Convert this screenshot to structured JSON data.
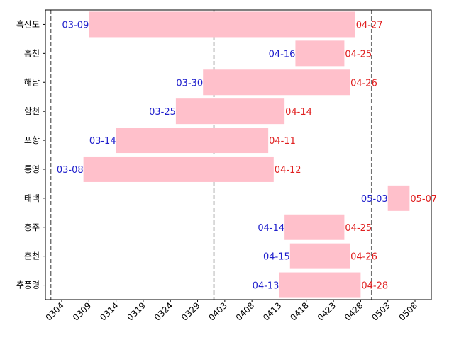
{
  "chart_data": {
    "type": "bar",
    "orientation": "horizontal",
    "title": "",
    "xlabel": "",
    "ylabel": "",
    "grid": false,
    "year": 2021,
    "bar_color": "#ffc0cb",
    "start_label_color": "#1f1fcc",
    "end_label_color": "#e02020",
    "ref_line_color": "#707070",
    "categories": [
      "흑산도",
      "홍천",
      "해남",
      "함천",
      "포항",
      "통영",
      "태백",
      "충주",
      "춘천",
      "추풍령"
    ],
    "series": [
      {
        "start": [
          "2021-03-09",
          "2021-04-16",
          "2021-03-30",
          "2021-03-25",
          "2021-03-14",
          "2021-03-08",
          "2021-05-03",
          "2021-04-14",
          "2021-04-15",
          "2021-04-13"
        ],
        "end": [
          "2021-04-27",
          "2021-04-25",
          "2021-04-26",
          "2021-04-14",
          "2021-04-11",
          "2021-04-12",
          "2021-05-07",
          "2021-04-25",
          "2021-04-26",
          "2021-04-28"
        ],
        "start_labels": [
          "03-09",
          "04-16",
          "03-30",
          "03-25",
          "03-14",
          "03-08",
          "05-03",
          "04-14",
          "04-15",
          "04-13"
        ],
        "end_labels": [
          "04-27",
          "04-25",
          "04-26",
          "04-14",
          "04-11",
          "04-12",
          "05-07",
          "04-25",
          "04-26",
          "04-28"
        ]
      }
    ],
    "x_ticks": [
      "2021-03-04",
      "2021-03-09",
      "2021-03-14",
      "2021-03-19",
      "2021-03-24",
      "2021-03-29",
      "2021-04-03",
      "2021-04-08",
      "2021-04-13",
      "2021-04-18",
      "2021-04-23",
      "2021-04-28",
      "2021-05-03",
      "2021-05-08"
    ],
    "x_tick_labels": [
      "0304",
      "0309",
      "0314",
      "0319",
      "0324",
      "0329",
      "0403",
      "0408",
      "0413",
      "0418",
      "0423",
      "0428",
      "0503",
      "0508"
    ],
    "xlim": [
      "2021-03-01",
      "2021-05-11"
    ],
    "reference_lines": [
      "2021-03-02",
      "2021-04-01",
      "2021-04-30"
    ]
  }
}
